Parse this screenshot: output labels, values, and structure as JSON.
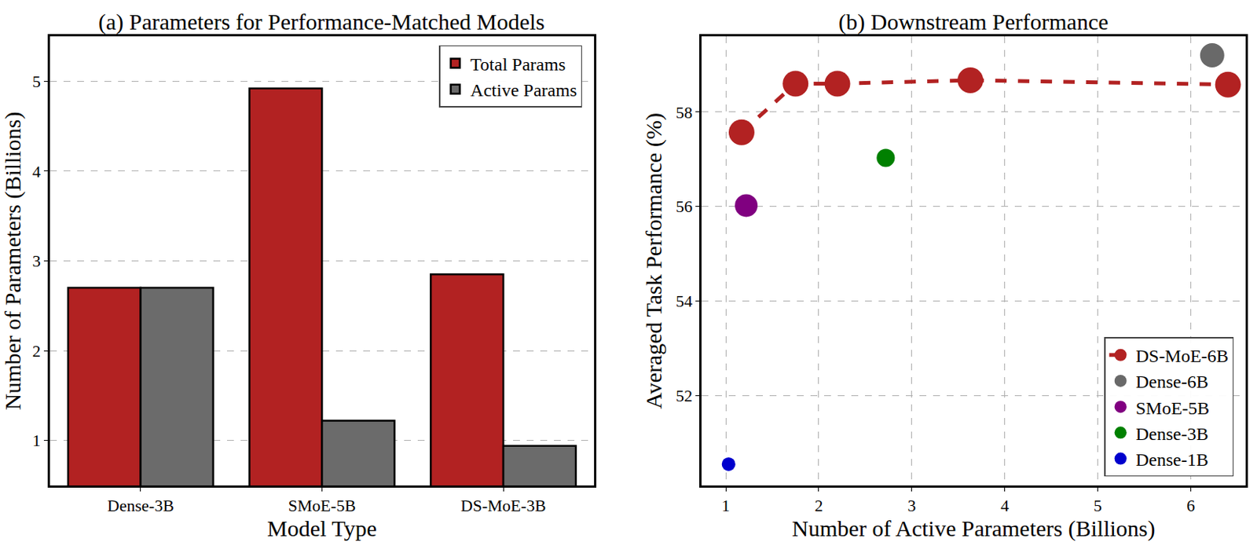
{
  "chart_data": [
    {
      "type": "bar",
      "title": "(a) Parameters for Performance-Matched Models",
      "x_label": "Model Type",
      "y_label": "Number of Parameters (Billions)",
      "categories": [
        "Dense-3B",
        "SMoE-5B",
        "DS-MoE-3B"
      ],
      "series": [
        {
          "name": "Total Params",
          "color": "#b22222",
          "values": [
            2.7,
            4.92,
            2.85
          ]
        },
        {
          "name": "Active Params",
          "color": "#6b6b6b",
          "values": [
            2.7,
            1.22,
            0.94
          ]
        }
      ],
      "ylim": [
        0.5,
        5.5
      ],
      "yticks": [
        1,
        2,
        3,
        4,
        5
      ],
      "grid": true,
      "legend": "top right"
    },
    {
      "type": "scatter",
      "title": "(b) Downstream Performance",
      "x_label": "Number of Active Parameters (Billions)",
      "y_label": "Averaged Task Performance (%)",
      "series": [
        {
          "name": "DS-MoE-6B",
          "type": "line",
          "line_style": "dashed",
          "marker": "circle",
          "color": "#b22222",
          "x": [
            1.17,
            1.75,
            2.2,
            3.63,
            6.4
          ],
          "values": [
            57.57,
            58.6,
            58.6,
            58.67,
            58.58
          ]
        },
        {
          "name": "Dense-6B",
          "type": "scatter",
          "marker": "circle",
          "color": "#696969",
          "x": [
            6.23
          ],
          "values": [
            59.2
          ]
        },
        {
          "name": "SMoE-5B",
          "type": "scatter",
          "marker": "circle",
          "color": "#800080",
          "x": [
            1.22
          ],
          "values": [
            56.02
          ]
        },
        {
          "name": "Dense-3B",
          "type": "scatter",
          "marker": "circle",
          "color": "#008000",
          "x": [
            2.72
          ],
          "values": [
            57.03
          ]
        },
        {
          "name": "Dense-1B",
          "type": "scatter",
          "marker": "circle",
          "color": "#0000cd",
          "x": [
            1.03
          ],
          "values": [
            50.55
          ]
        }
      ],
      "xlim": [
        0.74,
        6.59
      ],
      "xticks": [
        1,
        2,
        3,
        4,
        5,
        6
      ],
      "ylim": [
        50.1,
        59.6
      ],
      "yticks": [
        52,
        54,
        56,
        58
      ],
      "grid": true,
      "legend": "bottom right"
    }
  ]
}
